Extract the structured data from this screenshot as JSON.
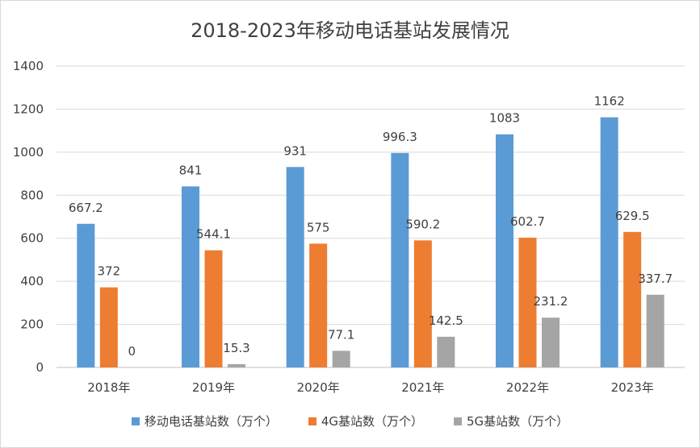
{
  "chart_data": {
    "type": "bar",
    "title": "2018-2023年移动电话基站发展情况",
    "categories": [
      "2018年",
      "2019年",
      "2020年",
      "2021年",
      "2022年",
      "2023年"
    ],
    "series": [
      {
        "name": "移动电话基站数（万个）",
        "color": "#5b9bd5",
        "values": [
          667.2,
          841,
          931,
          996.3,
          1083,
          1162
        ],
        "labels": [
          "667.2",
          "841",
          "931",
          "996.3",
          "1083",
          "1162"
        ]
      },
      {
        "name": "4G基站数（万个）",
        "color": "#ed7d31",
        "values": [
          372,
          544.1,
          575,
          590.2,
          602.7,
          629.5
        ],
        "labels": [
          "372",
          "544.1",
          "575",
          "590.2",
          "602.7",
          "629.5"
        ]
      },
      {
        "name": "5G基站数（万个）",
        "color": "#a5a5a5",
        "values": [
          0,
          15.3,
          77.1,
          142.5,
          231.2,
          337.7
        ],
        "labels": [
          "0",
          "15.3",
          "77.1",
          "142.5",
          "231.2",
          "337.7"
        ]
      }
    ],
    "ylim": [
      0,
      1400
    ],
    "yticks": [
      "0",
      "200",
      "400",
      "600",
      "800",
      "1000",
      "1200",
      "1400"
    ],
    "grid": true,
    "legend_position": "bottom"
  }
}
